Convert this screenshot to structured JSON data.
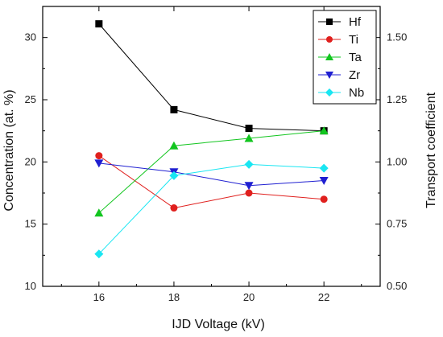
{
  "chart_data": {
    "type": "line",
    "x": [
      16,
      18,
      20,
      22
    ],
    "xlabel": "IJD Voltage (kV)",
    "ylabel": "Concentration (at. %)",
    "y2label": "Transport coefficient",
    "xlim": [
      14.5,
      23.5
    ],
    "ylim": [
      10,
      32.5
    ],
    "y2lim": [
      0.5,
      1.625
    ],
    "xticks": [
      "16",
      "18",
      "20",
      "22"
    ],
    "yticks": [
      "10",
      "15",
      "20",
      "25",
      "30"
    ],
    "y2ticks": [
      "0.50",
      "0.75",
      "1.00",
      "1.25",
      "1.50"
    ],
    "grid": false,
    "legend_position": "top-right",
    "series": [
      {
        "name": "Hf",
        "values": [
          31.1,
          24.2,
          22.7,
          22.5
        ],
        "color": "#000000",
        "marker": "square"
      },
      {
        "name": "Ti",
        "values": [
          20.5,
          16.3,
          17.5,
          17.0
        ],
        "color": "#e0201e",
        "marker": "circle"
      },
      {
        "name": "Ta",
        "values": [
          15.9,
          21.3,
          21.9,
          22.5
        ],
        "color": "#12c51f",
        "marker": "triangle-up"
      },
      {
        "name": "Zr",
        "values": [
          19.9,
          19.2,
          18.1,
          18.5
        ],
        "color": "#1f1fd1",
        "marker": "triangle-down"
      },
      {
        "name": "Nb",
        "values": [
          12.6,
          18.9,
          19.8,
          19.5
        ],
        "color": "#19e6f2",
        "marker": "diamond"
      }
    ]
  }
}
